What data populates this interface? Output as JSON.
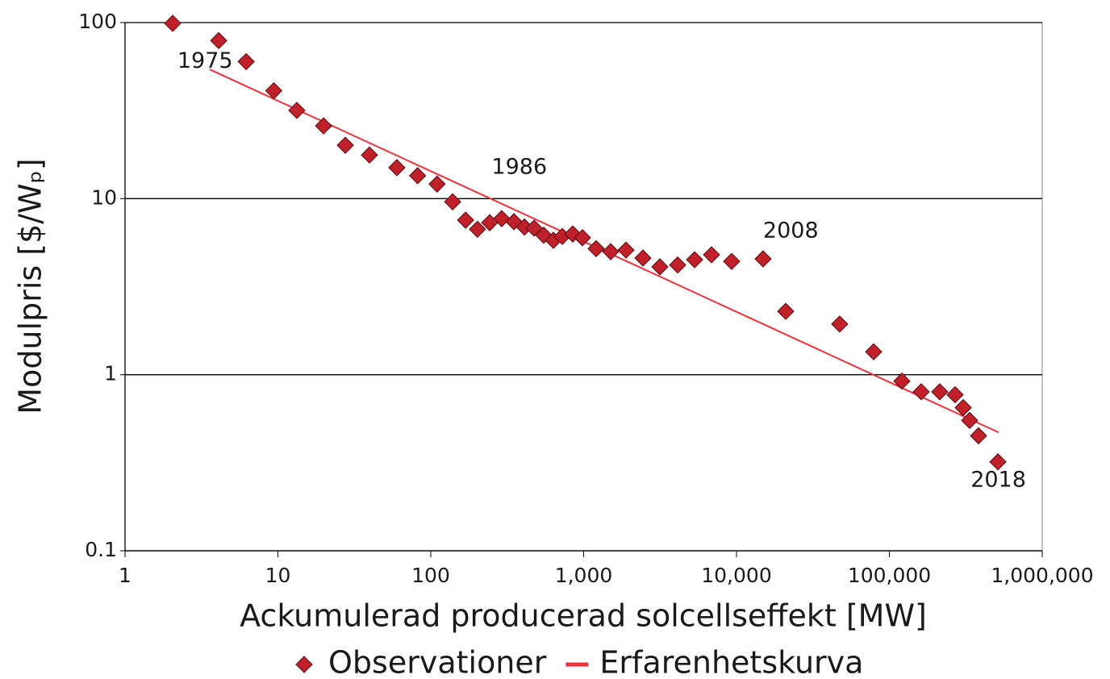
{
  "chart_data": {
    "type": "scatter",
    "xlabel": "Ackumulerad producerad solcellseffekt [MW]",
    "ylabel": "Modulpris [$/Wₚ]",
    "xscale": "log",
    "yscale": "log",
    "xlim": [
      1,
      1000000
    ],
    "ylim": [
      0.1,
      100
    ],
    "xticks": [
      1,
      10,
      100,
      {
        "value": 1000,
        "label": "1,000"
      },
      {
        "value": 10000,
        "label": "10,000"
      },
      {
        "value": 100000,
        "label": "100,000"
      },
      {
        "value": 1000000,
        "label": "1,000,000"
      }
    ],
    "yticks": [
      0.1,
      1,
      10,
      100
    ],
    "grid": true,
    "legend": "bottom",
    "series": [
      {
        "name": "Observationer",
        "mark": "diamond",
        "color": "#c0202a",
        "x": [
          2.05,
          4.1,
          6.2,
          9.4,
          13.3,
          19.9,
          27.6,
          39.7,
          60,
          82,
          110,
          139,
          169,
          202,
          243,
          291,
          350,
          410,
          474,
          548,
          634,
          725,
          849,
          982,
          1207,
          1503,
          1893,
          2443,
          3154,
          4121,
          5321,
          6860,
          9290,
          14920,
          20990,
          47300,
          78900,
          120700,
          161500,
          213600,
          269000,
          304000,
          335000,
          383000,
          513000
        ],
        "values": [
          99,
          79,
          60,
          41,
          31.7,
          25.9,
          20.1,
          17.7,
          15,
          13.5,
          12.1,
          9.6,
          7.55,
          6.7,
          7.3,
          7.7,
          7.4,
          6.9,
          6.8,
          6.2,
          5.8,
          6.1,
          6.3,
          6.0,
          5.2,
          5.0,
          5.1,
          4.6,
          4.1,
          4.2,
          4.5,
          4.8,
          4.4,
          4.55,
          2.29,
          1.94,
          1.35,
          0.92,
          0.8,
          0.8,
          0.77,
          0.65,
          0.55,
          0.45,
          0.32
        ]
      },
      {
        "name": "Erfarenhetskurva",
        "mark": "line",
        "color": "#f0303a",
        "x": [
          3.58,
          519000
        ],
        "values": [
          54.2,
          0.47
        ]
      }
    ],
    "annotations": [
      {
        "text": "1975",
        "x": 2.2,
        "y": 60
      },
      {
        "text": "1986",
        "x": 250,
        "y": 15
      },
      {
        "text": "2008",
        "x": 14920,
        "y": 6.5
      },
      {
        "text": "2018",
        "x": 340000,
        "y": 0.25
      }
    ]
  }
}
